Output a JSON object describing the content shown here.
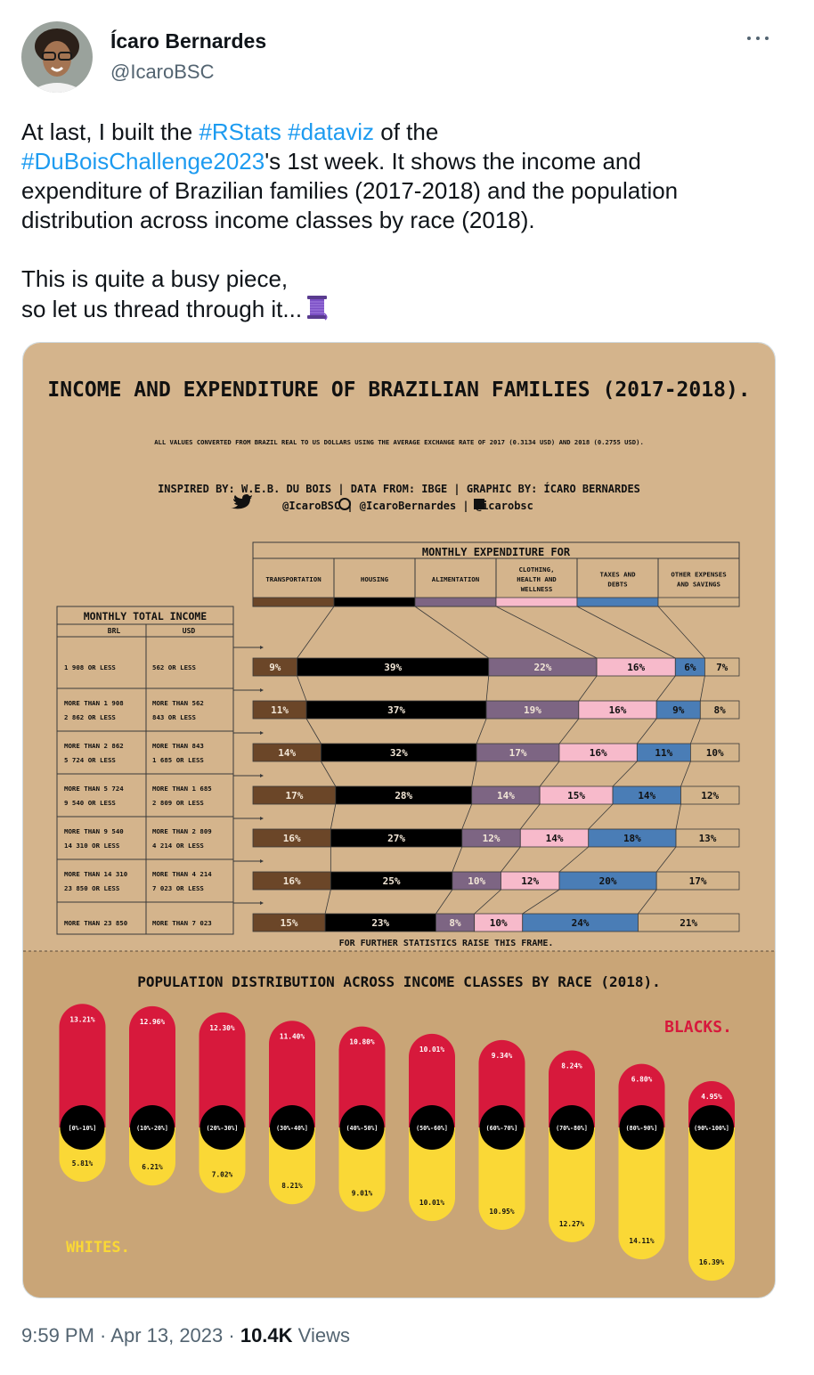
{
  "author": {
    "name": "Ícaro Bernardes",
    "handle": "@IcaroBSC"
  },
  "tweet": {
    "l1_a": "At last, I built the ",
    "l1_h1": "#RStats",
    "l1_sp": " ",
    "l1_h2": "#dataviz",
    "l1_b": " of the",
    "l2_h": "#DuBoisChallenge2023",
    "l2_b": "'s 1st week. It shows the income and",
    "l3": "expenditure of Brazilian families (2017-2018) and the population",
    "l4": "distribution across income classes by race (2018).",
    "l5": "This is quite a busy piece,",
    "l6": "so let us thread through it..."
  },
  "meta": {
    "time": "9:59 PM",
    "date": "Apr 13, 2023",
    "views_count": "10.4K",
    "views_label": "Views"
  },
  "colors": {
    "transport": "#6b4628",
    "housing": "#000000",
    "aliment": "#7d6583",
    "clothing": "#f7bacb",
    "taxes": "#4a7db6",
    "other": "#d3b48b",
    "black": "#d7193c",
    "white": "#fad836",
    "paper": "#d4b48c",
    "paper_dark": "#c9a577"
  },
  "chart_data": [
    {
      "type": "bar",
      "title": "INCOME AND EXPENDITURE OF BRAZILIAN FAMILIES (2017-2018).",
      "subtitle": "ALL VALUES CONVERTED FROM BRAZIL REAL TO US DOLLARS USING THE AVERAGE EXCHANGE RATE OF 2017 (0.3134 USD) AND 2018 (0.2755 USD).",
      "credits": "INSPIRED BY: W.E.B. DU BOIS | DATA FROM: IBGE | GRAPHIC BY: ÍCARO BERNARDES",
      "social": "@IcaroBSC | @IcaroBernardes | @icarobsc",
      "expenditure_header": "MONTHLY EXPENDITURE FOR",
      "income_header": "MONTHLY TOTAL INCOME",
      "income_cols": [
        "BRL",
        "USD"
      ],
      "footnote": "FOR FURTHER STATISTICS RAISE THIS FRAME.",
      "categories": [
        [
          "TRANSPORTATION"
        ],
        [
          "HOUSING"
        ],
        [
          "ALIMENTATION"
        ],
        [
          "CLOTHING,",
          "HEALTH AND",
          "WELLNESS"
        ],
        [
          "TAXES AND",
          "DEBTS"
        ],
        [
          "OTHER EXPENSES",
          "AND SAVINGS"
        ]
      ],
      "rows": [
        {
          "brl": [
            "1 908 OR LESS"
          ],
          "usd": [
            "562 OR LESS"
          ],
          "values": [
            9,
            39,
            22,
            16,
            6,
            7
          ]
        },
        {
          "brl": [
            "MORE THAN 1 908",
            "2 862 OR LESS"
          ],
          "usd": [
            "MORE THAN 562",
            "843 OR LESS"
          ],
          "values": [
            11,
            37,
            19,
            16,
            9,
            8
          ]
        },
        {
          "brl": [
            "MORE THAN 2 862",
            "5 724 OR LESS"
          ],
          "usd": [
            "MORE THAN 843",
            "1 685 OR LESS"
          ],
          "values": [
            14,
            32,
            17,
            16,
            11,
            10
          ]
        },
        {
          "brl": [
            "MORE THAN 5 724",
            "9 540 OR LESS"
          ],
          "usd": [
            "MORE THAN 1 685",
            "2 809 OR LESS"
          ],
          "values": [
            17,
            28,
            14,
            15,
            14,
            12
          ]
        },
        {
          "brl": [
            "MORE THAN 9 540",
            "14 310 OR LESS"
          ],
          "usd": [
            "MORE THAN 2 809",
            "4 214 OR LESS"
          ],
          "values": [
            16,
            27,
            12,
            14,
            18,
            13
          ]
        },
        {
          "brl": [
            "MORE THAN 14 310",
            "23 850 OR LESS"
          ],
          "usd": [
            "MORE THAN 4 214",
            "7 023 OR LESS"
          ],
          "values": [
            16,
            25,
            10,
            12,
            20,
            17
          ]
        },
        {
          "brl": [
            "MORE THAN 23 850"
          ],
          "usd": [
            "MORE THAN 7 023"
          ],
          "values": [
            15,
            23,
            8,
            10,
            24,
            21
          ]
        }
      ]
    },
    {
      "type": "bar",
      "title": "POPULATION DISTRIBUTION ACROSS INCOME CLASSES BY RACE (2018).",
      "categories": [
        "[0%-10%]",
        "(10%-20%]",
        "(20%-30%]",
        "(30%-40%]",
        "(40%-50%]",
        "(50%-60%]",
        "(60%-70%]",
        "(70%-80%]",
        "(80%-90%]",
        "(90%-100%]"
      ],
      "series": [
        {
          "name": "BLACKS.",
          "values": [
            13.21,
            12.96,
            12.3,
            11.4,
            10.8,
            10.01,
            9.34,
            8.24,
            6.8,
            4.95
          ],
          "labels": [
            "13.21%",
            "12.96%",
            "12.30%",
            "11.40%",
            "10.80%",
            "10.01%",
            "9.34%",
            "8.24%",
            "6.80%",
            "4.95%"
          ]
        },
        {
          "name": "WHITES.",
          "values": [
            5.81,
            6.21,
            7.02,
            8.21,
            9.01,
            10.01,
            10.95,
            12.27,
            14.11,
            16.39
          ],
          "labels": [
            "5.81%",
            "6.21%",
            "7.02%",
            "8.21%",
            "9.01%",
            "10.01%",
            "10.95%",
            "12.27%",
            "14.11%",
            "16.39%"
          ]
        }
      ]
    }
  ]
}
